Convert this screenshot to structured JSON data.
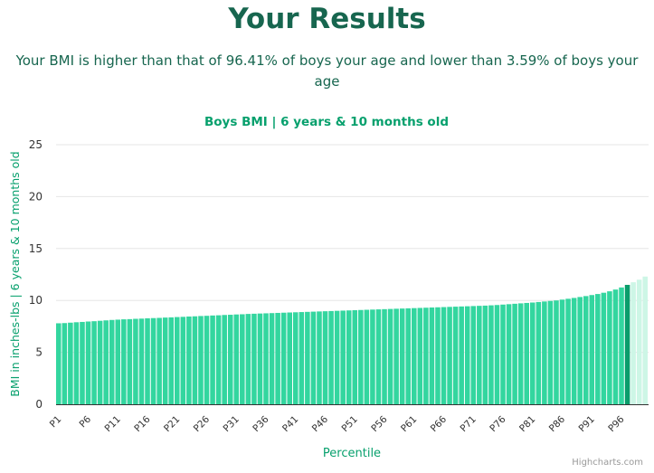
{
  "header": {
    "title": "Your Results",
    "summary": "Your BMI is higher than that of 96.41% of boys your age and lower than 3.59% of boys your age"
  },
  "credits": "Highcharts.com",
  "colors": {
    "title": "#17664f",
    "accent": "#07a06d",
    "bar": "#33d69f",
    "highlight": "#0a9d6b",
    "faded": "#cdf6e6",
    "grid": "#e6e6e6",
    "axis_text": "#333333"
  },
  "chart_data": {
    "type": "bar",
    "title": "Boys BMI | 6 years & 10 months old",
    "xlabel": "Percentile",
    "ylabel": "BMI in inches-lbs | 6 years & 10 months old",
    "ylim": [
      0,
      25
    ],
    "yticks": [
      0,
      5,
      10,
      15,
      20,
      25
    ],
    "tick_labels": [
      "P1",
      "P6",
      "P11",
      "P16",
      "P21",
      "P26",
      "P31",
      "P36",
      "P41",
      "P46",
      "P51",
      "P56",
      "P61",
      "P66",
      "P71",
      "P76",
      "P81",
      "P86",
      "P91",
      "P96"
    ],
    "categories": [
      "P1",
      "P2",
      "P3",
      "P4",
      "P5",
      "P6",
      "P7",
      "P8",
      "P9",
      "P10",
      "P11",
      "P12",
      "P13",
      "P14",
      "P15",
      "P16",
      "P17",
      "P18",
      "P19",
      "P20",
      "P21",
      "P22",
      "P23",
      "P24",
      "P25",
      "P26",
      "P27",
      "P28",
      "P29",
      "P30",
      "P31",
      "P32",
      "P33",
      "P34",
      "P35",
      "P36",
      "P37",
      "P38",
      "P39",
      "P40",
      "P41",
      "P42",
      "P43",
      "P44",
      "P45",
      "P46",
      "P47",
      "P48",
      "P49",
      "P50",
      "P51",
      "P52",
      "P53",
      "P54",
      "P55",
      "P56",
      "P57",
      "P58",
      "P59",
      "P60",
      "P61",
      "P62",
      "P63",
      "P64",
      "P65",
      "P66",
      "P67",
      "P68",
      "P69",
      "P70",
      "P71",
      "P72",
      "P73",
      "P74",
      "P75",
      "P76",
      "P77",
      "P78",
      "P79",
      "P80",
      "P81",
      "P82",
      "P83",
      "P84",
      "P85",
      "P86",
      "P87",
      "P88",
      "P89",
      "P90",
      "P91",
      "P92",
      "P93",
      "P94",
      "P95",
      "P96",
      "P97",
      "P98",
      "P99",
      "P100"
    ],
    "values": [
      7.8,
      7.82,
      7.86,
      7.9,
      7.93,
      7.97,
      8.0,
      8.04,
      8.08,
      8.12,
      8.15,
      8.18,
      8.2,
      8.23,
      8.25,
      8.28,
      8.3,
      8.32,
      8.35,
      8.37,
      8.4,
      8.42,
      8.45,
      8.47,
      8.5,
      8.52,
      8.55,
      8.57,
      8.6,
      8.62,
      8.65,
      8.67,
      8.7,
      8.72,
      8.74,
      8.76,
      8.78,
      8.8,
      8.82,
      8.84,
      8.86,
      8.88,
      8.9,
      8.92,
      8.94,
      8.96,
      8.98,
      9.0,
      9.02,
      9.04,
      9.06,
      9.08,
      9.1,
      9.12,
      9.14,
      9.16,
      9.18,
      9.2,
      9.22,
      9.24,
      9.26,
      9.28,
      9.3,
      9.32,
      9.34,
      9.36,
      9.38,
      9.4,
      9.42,
      9.44,
      9.46,
      9.48,
      9.5,
      9.53,
      9.56,
      9.6,
      9.64,
      9.68,
      9.72,
      9.76,
      9.8,
      9.85,
      9.9,
      9.95,
      10.0,
      10.08,
      10.16,
      10.24,
      10.33,
      10.42,
      10.52,
      10.62,
      10.74,
      10.88,
      11.05,
      11.25,
      11.5,
      11.75,
      12.0,
      12.3
    ],
    "highlight_index": 96,
    "grid": true,
    "legend": "none"
  }
}
